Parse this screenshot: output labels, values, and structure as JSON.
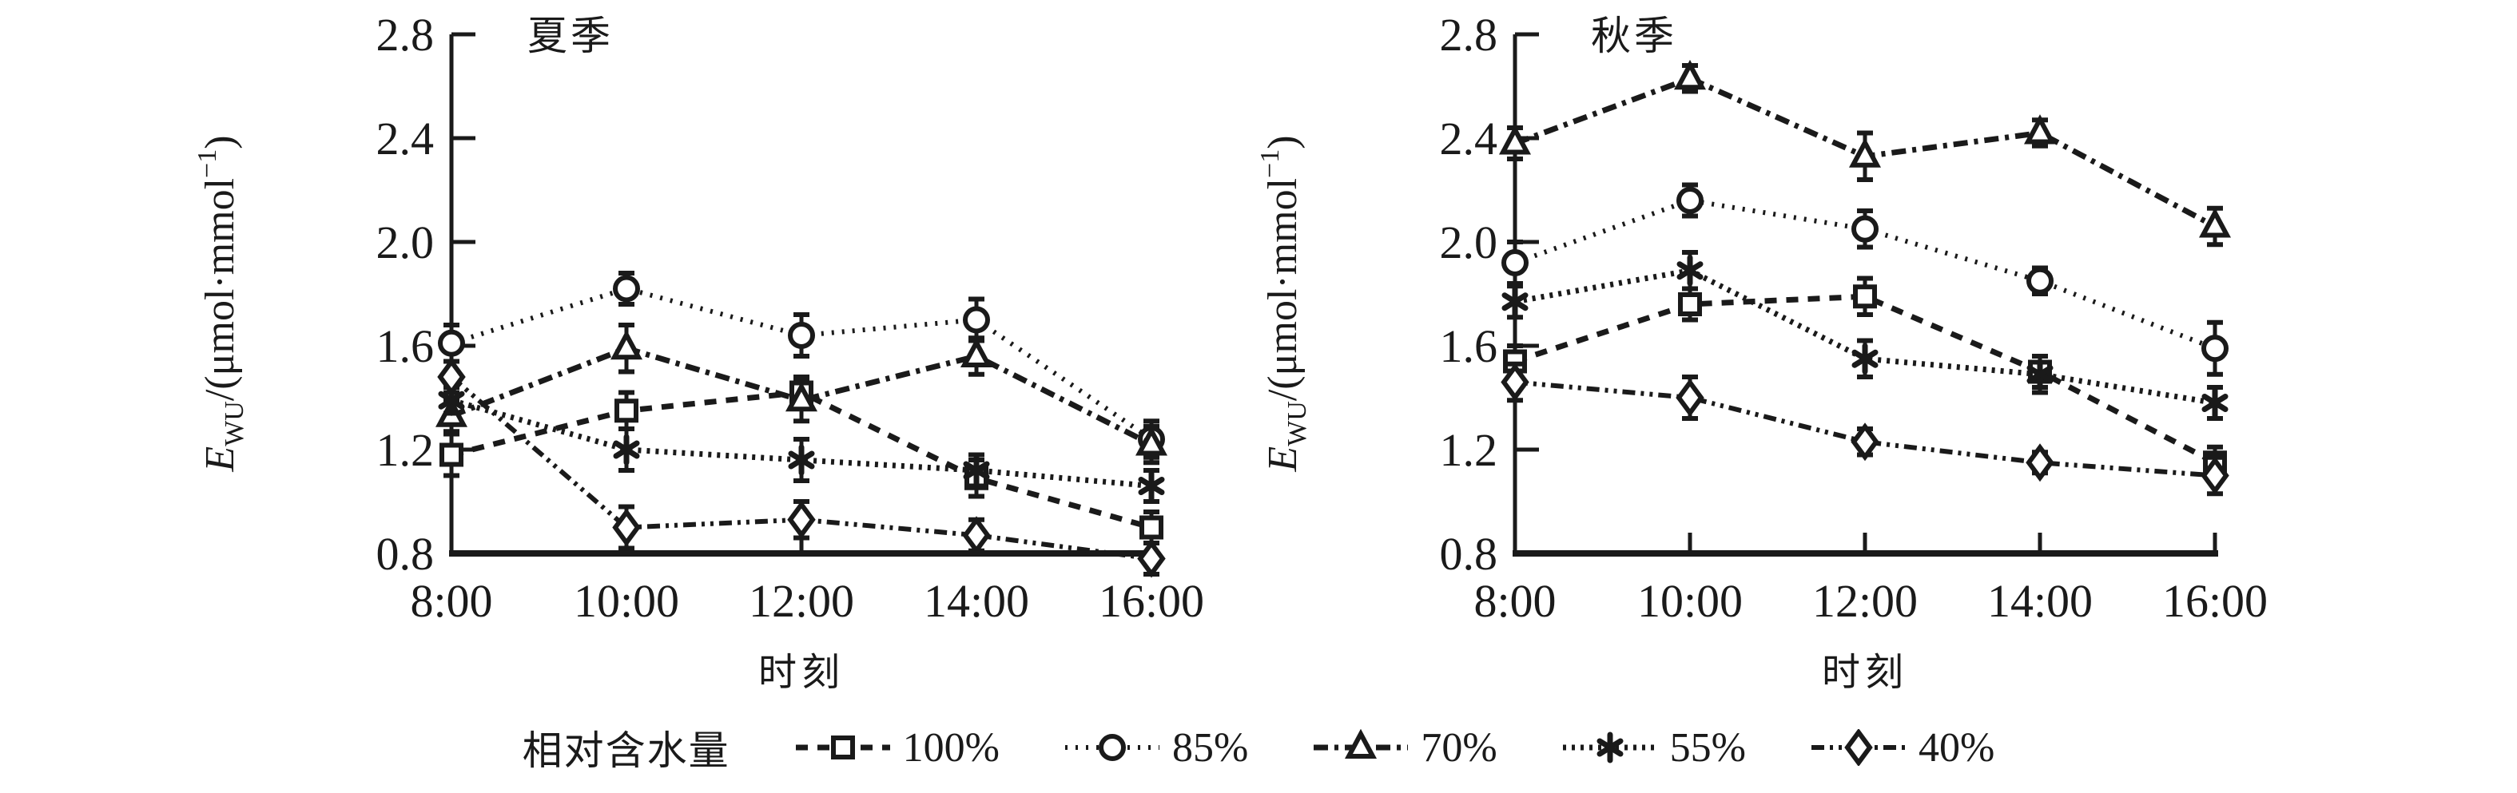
{
  "figure": {
    "y_axis": {
      "symbol": "E",
      "subscript": "WU",
      "rest": "/(μmol·mmol",
      "superscript": "−1",
      "close": ")"
    }
  },
  "chart_data": [
    {
      "type": "line",
      "title": "夏季",
      "xlabel": "时刻",
      "ylabel": "EWU/(μmol·mmol−1)",
      "categories": [
        "8:00",
        "10:00",
        "12:00",
        "14:00",
        "16:00"
      ],
      "ylim": [
        0.8,
        2.8
      ],
      "yticks": [
        "0.8",
        "1.2",
        "1.6",
        "2.0",
        "2.4",
        "2.8"
      ],
      "grid": false,
      "series": [
        {
          "name": "100%",
          "marker": "square",
          "values": [
            1.18,
            1.35,
            1.42,
            1.09,
            0.9
          ],
          "errors": [
            0.08,
            0.07,
            0.06,
            0.07,
            0.06
          ]
        },
        {
          "name": "85%",
          "marker": "circle",
          "values": [
            1.61,
            1.82,
            1.64,
            1.7,
            1.24
          ],
          "errors": [
            0.07,
            0.06,
            0.08,
            0.08,
            0.07
          ]
        },
        {
          "name": "70%",
          "marker": "triangle",
          "values": [
            1.33,
            1.59,
            1.39,
            1.56,
            1.22
          ],
          "errors": [
            0.06,
            0.09,
            0.08,
            0.07,
            0.07
          ]
        },
        {
          "name": "55%",
          "marker": "asterisk",
          "values": [
            1.39,
            1.2,
            1.16,
            1.12,
            1.06
          ],
          "errors": [
            0.05,
            0.08,
            0.08,
            0.06,
            0.06
          ]
        },
        {
          "name": "40%",
          "marker": "diamond",
          "values": [
            1.48,
            0.9,
            0.93,
            0.87,
            0.78
          ],
          "errors": [
            0.06,
            0.08,
            0.07,
            0.06,
            0.06
          ]
        }
      ]
    },
    {
      "type": "line",
      "title": "秋季",
      "xlabel": "时刻",
      "ylabel": "EWU/(μmol·mmol−1)",
      "categories": [
        "8:00",
        "10:00",
        "12:00",
        "14:00",
        "16:00"
      ],
      "ylim": [
        0.8,
        2.8
      ],
      "yticks": [
        "0.8",
        "1.2",
        "1.6",
        "2.0",
        "2.4",
        "2.8"
      ],
      "grid": false,
      "series": [
        {
          "name": "100%",
          "marker": "square",
          "values": [
            1.54,
            1.76,
            1.79,
            1.5,
            1.15
          ],
          "errors": [
            0.06,
            0.06,
            0.07,
            0.06,
            0.06
          ]
        },
        {
          "name": "85%",
          "marker": "circle",
          "values": [
            1.92,
            2.16,
            2.05,
            1.85,
            1.59
          ],
          "errors": [
            0.08,
            0.06,
            0.07,
            0.05,
            0.1
          ]
        },
        {
          "name": "70%",
          "marker": "triangle",
          "values": [
            2.38,
            2.63,
            2.33,
            2.42,
            2.06
          ],
          "errors": [
            0.06,
            0.05,
            0.09,
            0.05,
            0.07
          ]
        },
        {
          "name": "55%",
          "marker": "asterisk",
          "values": [
            1.77,
            1.89,
            1.55,
            1.49,
            1.38
          ],
          "errors": [
            0.06,
            0.07,
            0.07,
            0.07,
            0.06
          ]
        },
        {
          "name": "40%",
          "marker": "diamond",
          "values": [
            1.46,
            1.4,
            1.23,
            1.15,
            1.1
          ],
          "errors": [
            0.07,
            0.08,
            0.05,
            0.04,
            0.07
          ]
        }
      ]
    }
  ],
  "legend": {
    "title": "相对含水量",
    "items": [
      {
        "label": "100%",
        "marker": "square"
      },
      {
        "label": "85%",
        "marker": "circle"
      },
      {
        "label": "70%",
        "marker": "triangle"
      },
      {
        "label": "55%",
        "marker": "asterisk"
      },
      {
        "label": "40%",
        "marker": "diamond"
      }
    ]
  }
}
